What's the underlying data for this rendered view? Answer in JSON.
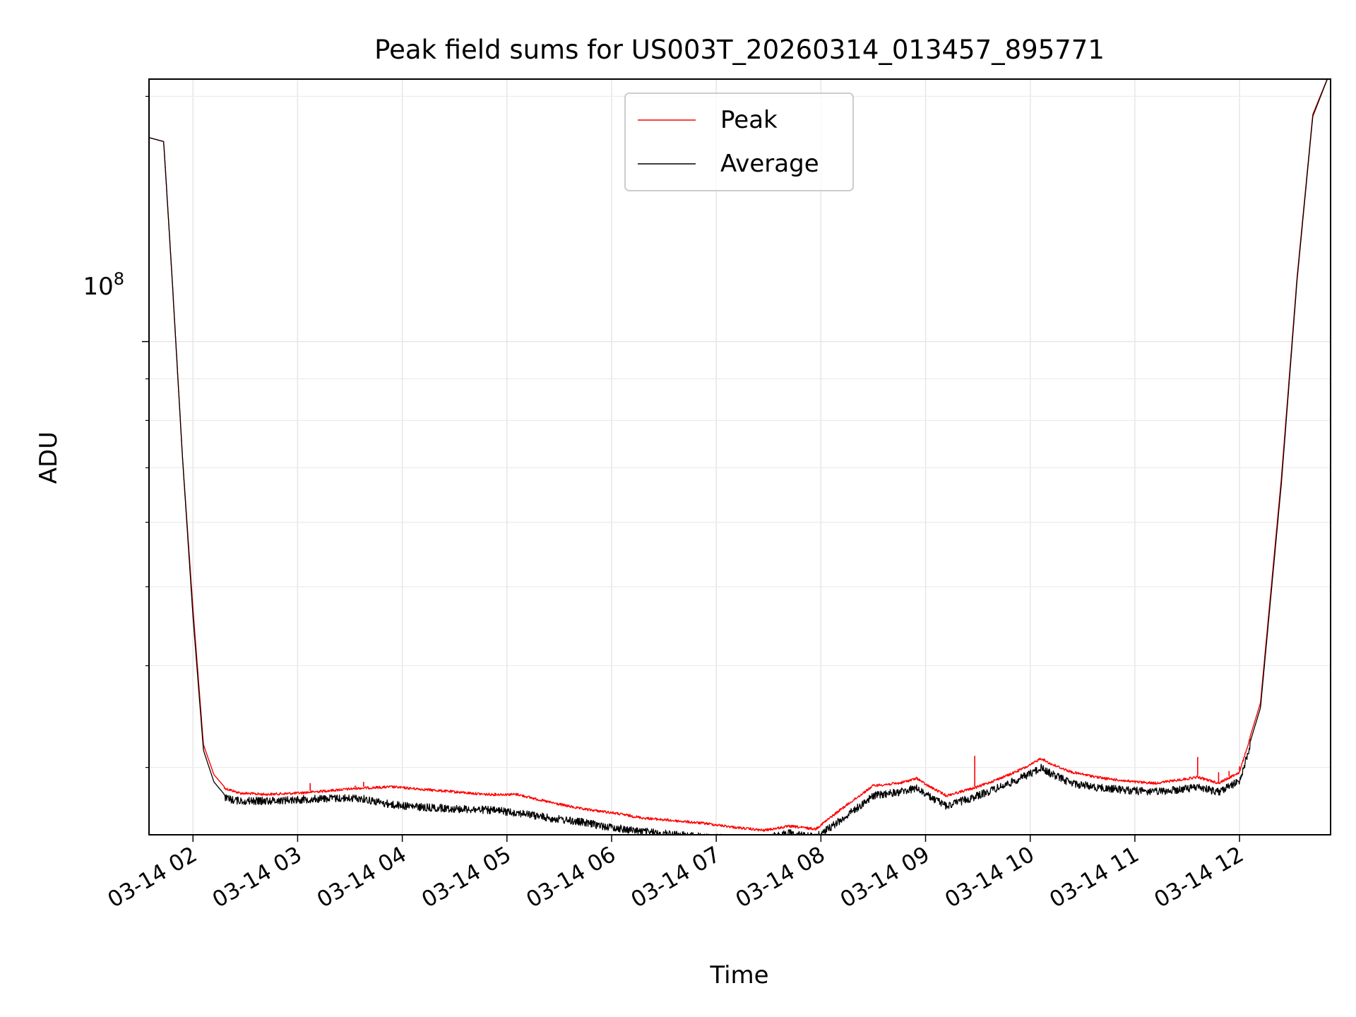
{
  "chart_data": {
    "type": "line",
    "title": "Peak field sums for US003T_20260314_013457_895771",
    "xlabel": "Time",
    "ylabel": "ADU",
    "y_scale": "log",
    "y_tick_label": {
      "base": "10",
      "exp": "8"
    },
    "x_ticks": [
      {
        "hour": 2,
        "label": "03-14 02"
      },
      {
        "hour": 3,
        "label": "03-14 03"
      },
      {
        "hour": 4,
        "label": "03-14 04"
      },
      {
        "hour": 5,
        "label": "03-14 05"
      },
      {
        "hour": 6,
        "label": "03-14 06"
      },
      {
        "hour": 7,
        "label": "03-14 07"
      },
      {
        "hour": 8,
        "label": "03-14 08"
      },
      {
        "hour": 9,
        "label": "03-14 09"
      },
      {
        "hour": 10,
        "label": "03-14 10"
      },
      {
        "hour": 11,
        "label": "03-14 11"
      },
      {
        "hour": 12,
        "label": "03-14 12"
      }
    ],
    "x_range_hours": [
      1.58,
      12.87
    ],
    "ylim": [
      24800000,
      210000000
    ],
    "y_minor_ticks": [
      30000000,
      40000000,
      50000000,
      60000000,
      70000000,
      80000000,
      90000000,
      200000000
    ],
    "grid": true,
    "legend_position": "top-center",
    "series": [
      {
        "name": "Peak",
        "color": "#ff0000",
        "x_hours": [
          1.58,
          1.72,
          1.8,
          1.9,
          2.0,
          2.1,
          2.2,
          2.3,
          2.45,
          2.7,
          3.0,
          3.3,
          3.6,
          3.9,
          4.2,
          4.5,
          4.8,
          5.1,
          5.4,
          5.7,
          6.0,
          6.3,
          6.6,
          6.9,
          7.2,
          7.45,
          7.7,
          7.95,
          8.2,
          8.5,
          8.75,
          8.92,
          9.0,
          9.2,
          9.5,
          9.8,
          10.0,
          10.1,
          10.2,
          10.4,
          10.7,
          11.0,
          11.2,
          11.45,
          11.6,
          11.8,
          12.0,
          12.2,
          12.4,
          12.55,
          12.7,
          12.87
        ],
        "values": [
          178000000,
          176000000,
          120000000,
          72000000,
          47000000,
          32000000,
          29400000,
          28400000,
          28000000,
          27900000,
          28000000,
          28200000,
          28400000,
          28500000,
          28300000,
          28100000,
          27900000,
          27900000,
          27300000,
          26800000,
          26500000,
          26100000,
          25900000,
          25700000,
          25400000,
          25200000,
          25500000,
          25300000,
          26800000,
          28600000,
          28800000,
          29200000,
          28700000,
          27800000,
          28500000,
          29500000,
          30300000,
          30900000,
          30400000,
          29700000,
          29200000,
          28900000,
          28800000,
          29100000,
          29300000,
          28800000,
          29700000,
          36000000,
          68000000,
          120000000,
          190000000,
          215000000
        ]
      },
      {
        "name": "Average",
        "color": "#000000",
        "x_hours": [
          1.58,
          1.72,
          1.8,
          1.9,
          2.0,
          2.1,
          2.2,
          2.3,
          2.45,
          2.7,
          3.0,
          3.3,
          3.6,
          3.9,
          4.2,
          4.5,
          4.8,
          5.1,
          5.4,
          5.7,
          6.0,
          6.3,
          6.6,
          6.9,
          7.2,
          7.45,
          7.7,
          7.95,
          8.2,
          8.5,
          8.75,
          8.92,
          9.0,
          9.2,
          9.5,
          9.8,
          10.0,
          10.1,
          10.2,
          10.4,
          10.7,
          11.0,
          11.2,
          11.45,
          11.6,
          11.8,
          12.0,
          12.2,
          12.4,
          12.55,
          12.7,
          12.87
        ],
        "values": [
          178000000,
          176000000,
          120000000,
          72000000,
          46000000,
          31500000,
          28800000,
          27800000,
          27600000,
          27600000,
          27700000,
          27800000,
          27800000,
          27300000,
          27100000,
          27000000,
          26900000,
          26700000,
          26300000,
          26000000,
          25600000,
          25300000,
          25100000,
          24900000,
          24800000,
          24800000,
          25200000,
          24900000,
          26200000,
          28000000,
          28300000,
          28600000,
          28100000,
          27200000,
          28000000,
          29000000,
          29800000,
          30300000,
          29800000,
          29000000,
          28600000,
          28400000,
          28300000,
          28500000,
          28700000,
          28300000,
          29200000,
          35500000,
          67000000,
          119000000,
          189000000,
          215000000
        ]
      }
    ],
    "spikes": [
      {
        "hour": 3.12,
        "value": 28700000
      },
      {
        "hour": 3.4,
        "value": 28200000
      },
      {
        "hour": 3.55,
        "value": 28500000
      },
      {
        "hour": 3.63,
        "value": 28800000
      },
      {
        "hour": 9.47,
        "value": 31000000
      },
      {
        "hour": 11.6,
        "value": 30900000
      },
      {
        "hour": 11.8,
        "value": 29600000
      },
      {
        "hour": 11.9,
        "value": 29700000
      },
      {
        "hour": 12.0,
        "value": 30100000
      }
    ]
  }
}
